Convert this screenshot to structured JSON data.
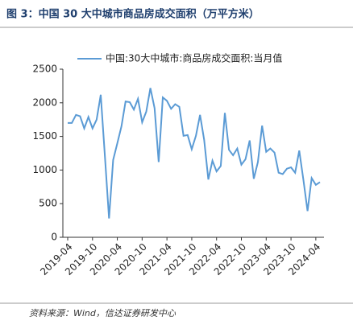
{
  "chart_data": {
    "type": "line",
    "title": "图 3：中国 30 大中城市商品房成交面积（万平方米）",
    "source": "资料来源：Wind，信达证券研发中心",
    "categories": [
      "2019-04",
      null,
      null,
      null,
      null,
      null,
      "2019-10",
      null,
      null,
      null,
      null,
      null,
      "2020-04",
      null,
      null,
      null,
      null,
      null,
      "2020-10",
      null,
      null,
      null,
      null,
      null,
      "2021-04",
      null,
      null,
      null,
      null,
      null,
      "2021-10",
      null,
      null,
      null,
      null,
      null,
      "2022-04",
      null,
      null,
      null,
      null,
      null,
      "2022-10",
      null,
      null,
      null,
      null,
      null,
      "2023-04",
      null,
      null,
      null,
      null,
      null,
      "2023-10",
      null,
      null,
      null,
      null,
      null,
      "2024-04",
      null
    ],
    "series": [
      {
        "name": "中国:30大中城市:商品房成交面积:当月值",
        "color": "#5b9bd5",
        "values": [
          1700,
          1700,
          1820,
          1800,
          1620,
          1790,
          1620,
          1750,
          2120,
          1200,
          280,
          1150,
          1400,
          1650,
          2020,
          2010,
          1900,
          2060,
          1710,
          1870,
          2220,
          1920,
          1120,
          2080,
          2030,
          1910,
          1980,
          1940,
          1510,
          1520,
          1310,
          1510,
          1820,
          1450,
          860,
          1140,
          980,
          1060,
          1850,
          1300,
          1220,
          1320,
          1080,
          1160,
          1440,
          870,
          1120,
          1660,
          1270,
          1320,
          1260,
          960,
          940,
          1020,
          1040,
          960,
          1290,
          850,
          390,
          880,
          780,
          820
        ]
      }
    ],
    "ylim": [
      0,
      2500
    ],
    "yticks": [
      0,
      500,
      1000,
      1500,
      2000,
      2500
    ],
    "grid": false,
    "legend": "top"
  }
}
